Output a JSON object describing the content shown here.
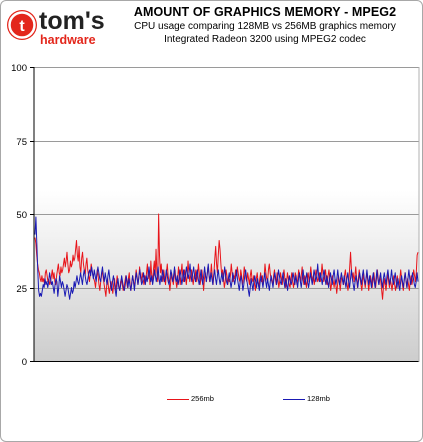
{
  "logo": {
    "word1": "tom's",
    "word2": "hardware",
    "accent": "#e3261b"
  },
  "chart_data": {
    "type": "line",
    "title": "AMOUNT OF GRAPHICS MEMORY - MPEG2",
    "subtitle": [
      "CPU usage comparing 128MB vs 256MB graphics memory",
      "Integrated Radeon 3200 using MPEG2 codec"
    ],
    "xlabel": "",
    "ylabel": "",
    "ylim": [
      0,
      100
    ],
    "yticks": [
      "0",
      "25",
      "50",
      "75",
      "100"
    ],
    "grid": "horizontal",
    "legend_position": "bottom",
    "series": [
      {
        "name": "256mb",
        "color": "#e8141a",
        "values": [
          42,
          40,
          36,
          33,
          31,
          30,
          28,
          27,
          29,
          27,
          28,
          26,
          30,
          31,
          29,
          27,
          28,
          26,
          27,
          29,
          31,
          28,
          30,
          27,
          26,
          29,
          31,
          33,
          30,
          29,
          32,
          30,
          31,
          33,
          35,
          32,
          34,
          37,
          33,
          30,
          31,
          34,
          32,
          33,
          36,
          34,
          35,
          38,
          41,
          36,
          34,
          39,
          32,
          30,
          35,
          37,
          33,
          31,
          29,
          33,
          35,
          31,
          29,
          27,
          30,
          33,
          31,
          29,
          28,
          27,
          25,
          28,
          31,
          29,
          26,
          24,
          27,
          29,
          31,
          28,
          26,
          24,
          22,
          26,
          28,
          25,
          23,
          25,
          27,
          25,
          23,
          26,
          28,
          24,
          26,
          29,
          27,
          25,
          24,
          27,
          28,
          26,
          24,
          25,
          27,
          29,
          27,
          25,
          28,
          30,
          26,
          24,
          27,
          29,
          27,
          25,
          28,
          31,
          29,
          26,
          28,
          32,
          29,
          27,
          30,
          28,
          26,
          29,
          27,
          30,
          33,
          28,
          31,
          26,
          34,
          29,
          27,
          31,
          34,
          29,
          38,
          30,
          27,
          50,
          36,
          30,
          33,
          29,
          27,
          31,
          28,
          26,
          30,
          33,
          29,
          27,
          24,
          27,
          30,
          28,
          26,
          29,
          31,
          27,
          25,
          28,
          32,
          29,
          26,
          30,
          33,
          28,
          27,
          31,
          29,
          26,
          29,
          34,
          30,
          27,
          29,
          31,
          28,
          26,
          29,
          28,
          31,
          27,
          29,
          33,
          30,
          26,
          28,
          31,
          28,
          24,
          28,
          30,
          27,
          29,
          32,
          30,
          27,
          29,
          33,
          29,
          26,
          30,
          35,
          39,
          33,
          30,
          36,
          41,
          38,
          33,
          29,
          31,
          28,
          25,
          27,
          31,
          29,
          26,
          28,
          27,
          29,
          33,
          30,
          27,
          29,
          28,
          31,
          29,
          32,
          30,
          28,
          27,
          31,
          29,
          26,
          28,
          32,
          30,
          28,
          27,
          30,
          28,
          26,
          29,
          31,
          28,
          27,
          29,
          26,
          24,
          28,
          30,
          27,
          25,
          28,
          30,
          27,
          29,
          26,
          28,
          33,
          30,
          28,
          27,
          31,
          33,
          30,
          28,
          27,
          26,
          29,
          31,
          28,
          26,
          30,
          28,
          25,
          27,
          30,
          28,
          26,
          29,
          31,
          28,
          25,
          27,
          30,
          28,
          26,
          25,
          28,
          30,
          27,
          25,
          27,
          30,
          29,
          26,
          28,
          31,
          29,
          27,
          29,
          32,
          28,
          26,
          29,
          27,
          25,
          28,
          30,
          27,
          29,
          32,
          29,
          27,
          29,
          26,
          28,
          31,
          29,
          27,
          28,
          30,
          27,
          29,
          33,
          30,
          27,
          29,
          31,
          28,
          26,
          29,
          31,
          28,
          24,
          26,
          29,
          27,
          25,
          28,
          26,
          23,
          26,
          29,
          27,
          24,
          27,
          29,
          27,
          26,
          29,
          31,
          28,
          26,
          24,
          27,
          32,
          37,
          31,
          28,
          30,
          27,
          29,
          32,
          28,
          25,
          28,
          31,
          28,
          26,
          24,
          27,
          30,
          27,
          25,
          28,
          30,
          27,
          24,
          27,
          29,
          27,
          25,
          28,
          30,
          27,
          25,
          28,
          31,
          28,
          26,
          29,
          27,
          24,
          21,
          25,
          28,
          26,
          24,
          27,
          30,
          27,
          25,
          28,
          26,
          24,
          27,
          29,
          26,
          24,
          26,
          29,
          27,
          25,
          28,
          31,
          28,
          26,
          24,
          27,
          30,
          28,
          25,
          28,
          26,
          24,
          27,
          29,
          26,
          28,
          31,
          29,
          27,
          30,
          36,
          37
        ]
      },
      {
        "name": "128mb",
        "color": "#1a1ab4",
        "values": [
          43,
          49,
          40,
          31,
          24,
          22,
          23,
          22,
          24,
          26,
          25,
          28,
          26,
          27,
          25,
          27,
          30,
          28,
          26,
          27,
          25,
          23,
          26,
          28,
          27,
          22,
          25,
          29,
          27,
          25,
          27,
          26,
          24,
          22,
          24,
          26,
          25,
          23,
          21,
          23,
          25,
          23,
          24,
          27,
          25,
          27,
          29,
          27,
          26,
          28,
          30,
          28,
          26,
          29,
          31,
          29,
          27,
          26,
          28,
          30,
          31,
          29,
          32,
          30,
          28,
          31,
          29,
          27,
          30,
          32,
          30,
          28,
          27,
          30,
          32,
          29,
          27,
          30,
          28,
          26,
          29,
          31,
          28,
          26,
          24,
          27,
          29,
          27,
          24,
          22,
          26,
          28,
          25,
          24,
          26,
          29,
          27,
          25,
          24,
          26,
          29,
          27,
          25,
          28,
          26,
          24,
          26,
          29,
          27,
          24,
          27,
          30,
          28,
          26,
          29,
          31,
          28,
          26,
          27,
          30,
          28,
          26,
          29,
          27,
          29,
          32,
          29,
          27,
          29,
          26,
          28,
          31,
          29,
          27,
          29,
          32,
          28,
          26,
          29,
          27,
          31,
          29,
          27,
          28,
          31,
          29,
          27,
          26,
          28,
          31,
          29,
          27,
          29,
          32,
          28,
          27,
          29,
          26,
          28,
          31,
          29,
          26,
          28,
          31,
          27,
          29,
          32,
          30,
          28,
          30,
          33,
          29,
          27,
          30,
          32,
          29,
          27,
          29,
          31,
          28,
          26,
          28,
          31,
          28,
          26,
          29,
          32,
          29,
          27,
          30,
          33,
          29,
          27,
          30,
          28,
          26,
          29,
          31,
          28,
          26,
          29,
          31,
          28,
          26,
          28,
          30,
          27,
          29,
          32,
          29,
          27,
          26,
          28,
          30,
          27,
          25,
          27,
          30,
          28,
          26,
          28,
          31,
          28,
          26,
          24,
          27,
          29,
          27,
          24,
          26,
          29,
          31,
          28,
          26,
          24,
          22,
          25,
          28,
          26,
          24,
          27,
          29,
          27,
          25,
          28,
          26,
          24,
          27,
          29,
          27,
          25,
          28,
          30,
          27,
          25,
          28,
          26,
          24,
          27,
          29,
          27,
          25,
          28,
          30,
          28,
          26,
          28,
          31,
          29,
          27,
          26,
          28,
          30,
          27,
          25,
          28,
          26,
          24,
          27,
          29,
          27,
          26,
          28,
          30,
          28,
          26,
          29,
          27,
          25,
          28,
          30,
          27,
          25,
          28,
          31,
          28,
          26,
          28,
          30,
          27,
          25,
          27,
          30,
          28,
          26,
          28,
          31,
          29,
          27,
          29,
          33,
          29,
          27,
          30,
          28,
          26,
          29,
          31,
          28,
          26,
          29,
          27,
          25,
          28,
          30,
          28,
          26,
          29,
          31,
          28,
          26,
          28,
          31,
          28,
          26,
          28,
          30,
          28,
          26,
          29,
          27,
          25,
          28,
          30,
          27,
          25,
          28,
          31,
          28,
          26,
          24,
          27,
          29,
          27,
          25,
          28,
          30,
          28,
          26,
          29,
          31,
          28,
          26,
          28,
          31,
          28,
          26,
          29,
          27,
          25,
          28,
          30,
          27,
          25,
          28,
          31,
          28,
          26,
          28,
          30,
          27,
          25,
          28,
          30,
          28,
          26,
          29,
          31,
          28,
          26,
          28,
          31,
          28,
          26,
          28,
          30,
          27,
          25,
          28,
          26,
          24,
          27,
          29,
          27,
          25,
          28,
          30,
          27,
          25,
          28,
          31,
          28,
          26,
          28,
          30,
          28,
          26,
          25,
          27,
          30,
          27
        ]
      }
    ]
  }
}
